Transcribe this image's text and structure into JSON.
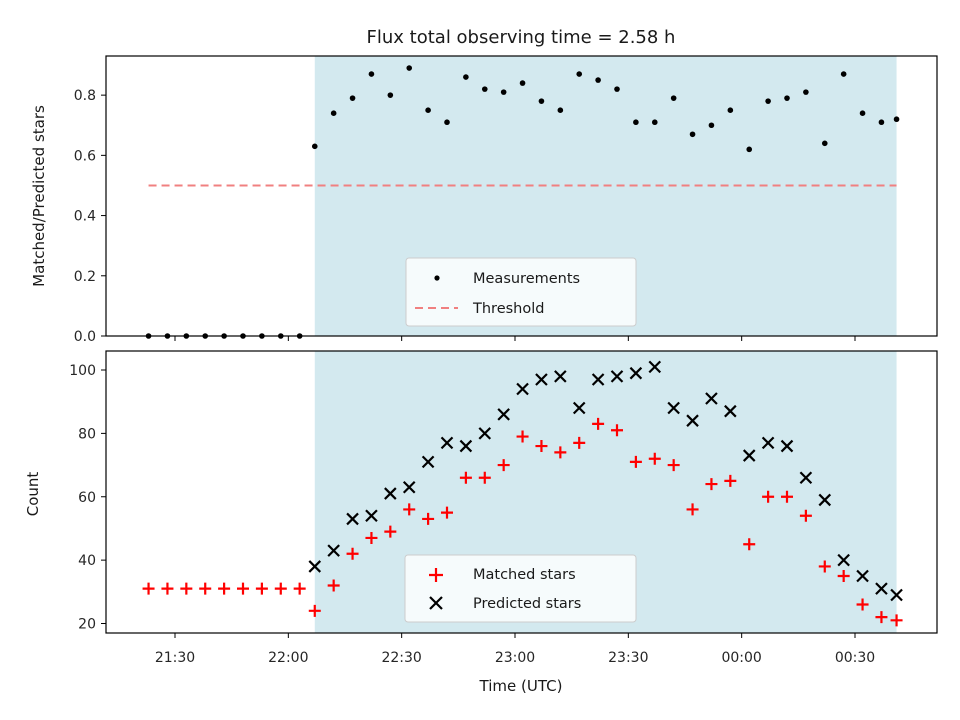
{
  "chart_data": [
    {
      "type": "scatter",
      "title": "Flux total observing time = 2.58 h",
      "xlabel": "",
      "ylabel": "Matched/Predicted stars",
      "ylim": [
        0,
        0.93
      ],
      "yticks": [
        "0.0",
        "0.2",
        "0.4",
        "0.6",
        "0.8"
      ],
      "ytick_values": [
        0,
        0.2,
        0.4,
        0.6,
        0.8
      ],
      "observing_window": [
        "22:07",
        "00:41"
      ],
      "legend": {
        "measurements": "Measurements",
        "threshold": "Threshold",
        "placement": "lower center"
      },
      "threshold": {
        "value": 0.5,
        "from": "21:23",
        "to": "00:41"
      },
      "series": [
        {
          "name": "Measurements",
          "x": [
            "21:23",
            "21:28",
            "21:33",
            "21:38",
            "21:43",
            "21:48",
            "21:53",
            "21:58",
            "22:03",
            "22:07",
            "22:12",
            "22:17",
            "22:22",
            "22:27",
            "22:32",
            "22:37",
            "22:42",
            "22:47",
            "22:52",
            "22:57",
            "23:02",
            "23:07",
            "23:12",
            "23:17",
            "23:22",
            "23:27",
            "23:32",
            "23:37",
            "23:42",
            "23:47",
            "23:52",
            "23:57",
            "00:02",
            "00:07",
            "00:12",
            "00:17",
            "00:22",
            "00:27",
            "00:32",
            "00:37",
            "00:41"
          ],
          "values": [
            0,
            0,
            0,
            0,
            0,
            0,
            0,
            0,
            0,
            0.63,
            0.74,
            0.79,
            0.87,
            0.8,
            0.89,
            0.75,
            0.71,
            0.86,
            0.82,
            0.81,
            0.84,
            0.78,
            0.75,
            0.87,
            0.85,
            0.82,
            0.71,
            0.71,
            0.79,
            0.67,
            0.7,
            0.75,
            0.62,
            0.78,
            0.79,
            0.81,
            0.64,
            0.87,
            0.74,
            0.71,
            0.72
          ]
        }
      ],
      "colors": {
        "measurements": "#000000",
        "threshold": "#f08080",
        "window": "#d3e9ef"
      }
    },
    {
      "type": "scatter",
      "title": "",
      "xlabel": "Time (UTC)",
      "ylabel": "Count",
      "ylim": [
        17,
        106
      ],
      "yticks": [
        "20",
        "40",
        "60",
        "80",
        "100"
      ],
      "ytick_values": [
        20,
        40,
        60,
        80,
        100
      ],
      "xticks": [
        "21:30",
        "22:00",
        "22:30",
        "23:00",
        "23:30",
        "00:00",
        "00:30"
      ],
      "xtick_times": [
        "21:30",
        "22:00",
        "22:30",
        "23:00",
        "23:30",
        "00:00",
        "00:30"
      ],
      "observing_window": [
        "22:07",
        "00:41"
      ],
      "legend": {
        "matched": "Matched stars",
        "predicted": "Predicted stars",
        "placement": "lower center"
      },
      "series": [
        {
          "name": "Matched stars",
          "x": [
            "21:23",
            "21:28",
            "21:33",
            "21:38",
            "21:43",
            "21:48",
            "21:53",
            "21:58",
            "22:03",
            "22:07",
            "22:12",
            "22:17",
            "22:22",
            "22:27",
            "22:32",
            "22:37",
            "22:42",
            "22:47",
            "22:52",
            "22:57",
            "23:02",
            "23:07",
            "23:12",
            "23:17",
            "23:22",
            "23:27",
            "23:32",
            "23:37",
            "23:42",
            "23:47",
            "23:52",
            "23:57",
            "00:02",
            "00:07",
            "00:12",
            "00:17",
            "00:22",
            "00:27",
            "00:32",
            "00:37",
            "00:41"
          ],
          "values": [
            31,
            31,
            31,
            31,
            31,
            31,
            31,
            31,
            31,
            24,
            32,
            42,
            47,
            49,
            56,
            53,
            55,
            66,
            66,
            70,
            79,
            76,
            74,
            77,
            83,
            81,
            71,
            72,
            70,
            56,
            64,
            65,
            45,
            60,
            60,
            54,
            38,
            35,
            26,
            22,
            21
          ]
        },
        {
          "name": "Predicted stars",
          "x": [
            "22:07",
            "22:12",
            "22:17",
            "22:22",
            "22:27",
            "22:32",
            "22:37",
            "22:42",
            "22:47",
            "22:52",
            "22:57",
            "23:02",
            "23:07",
            "23:12",
            "23:17",
            "23:22",
            "23:27",
            "23:32",
            "23:37",
            "23:42",
            "23:47",
            "23:52",
            "23:57",
            "00:02",
            "00:07",
            "00:12",
            "00:17",
            "00:22",
            "00:27",
            "00:32",
            "00:37",
            "00:41"
          ],
          "values": [
            38,
            43,
            53,
            54,
            61,
            63,
            71,
            77,
            76,
            80,
            86,
            94,
            97,
            98,
            88,
            97,
            98,
            99,
            101,
            88,
            84,
            91,
            87,
            73,
            77,
            76,
            66,
            59,
            40,
            35,
            31,
            29
          ]
        }
      ],
      "colors": {
        "matched": "#ff0000",
        "predicted": "#000000",
        "window": "#d3e9ef"
      }
    }
  ]
}
